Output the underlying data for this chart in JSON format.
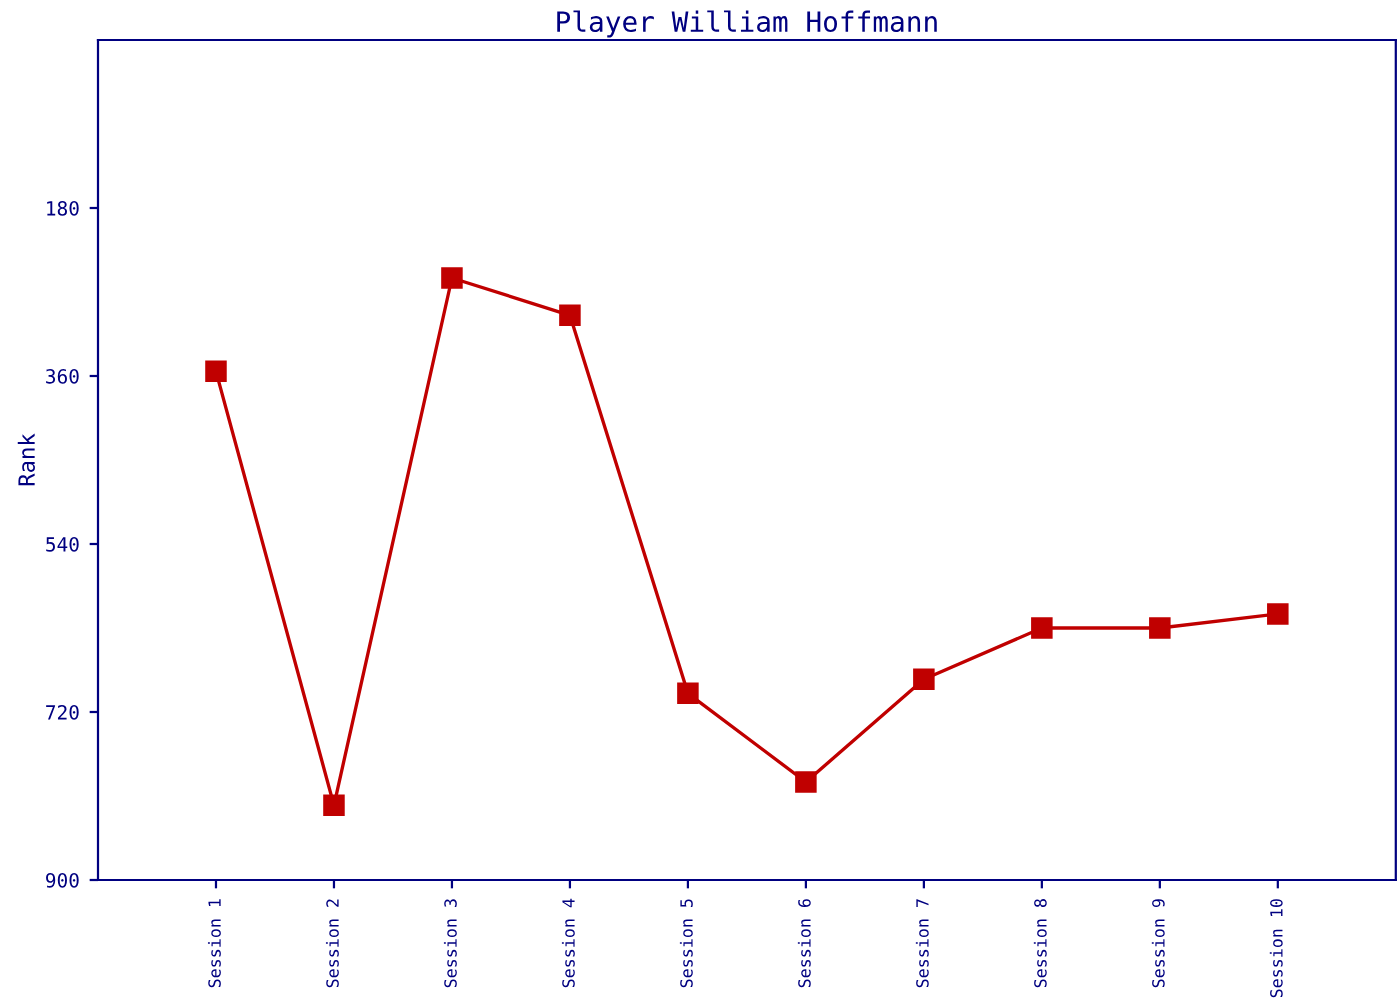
{
  "chart_data": {
    "type": "line",
    "title": "Player William Hoffmann",
    "ylabel": "Rank",
    "categories": [
      "Session 1",
      "Session 2",
      "Session 3",
      "Session 4",
      "Session 5",
      "Session 6",
      "Session 7",
      "Session 8",
      "Session 9",
      "Session 10"
    ],
    "series": [
      {
        "color": "#c00000",
        "values": [
          355,
          820,
          255,
          295,
          700,
          795,
          685,
          630,
          630,
          615
        ]
      }
    ],
    "ylim": [
      900,
      0
    ],
    "yticks": [
      180,
      360,
      540,
      720,
      900
    ],
    "marker": "square",
    "line_style": "solid",
    "grid": false,
    "legend": false
  }
}
